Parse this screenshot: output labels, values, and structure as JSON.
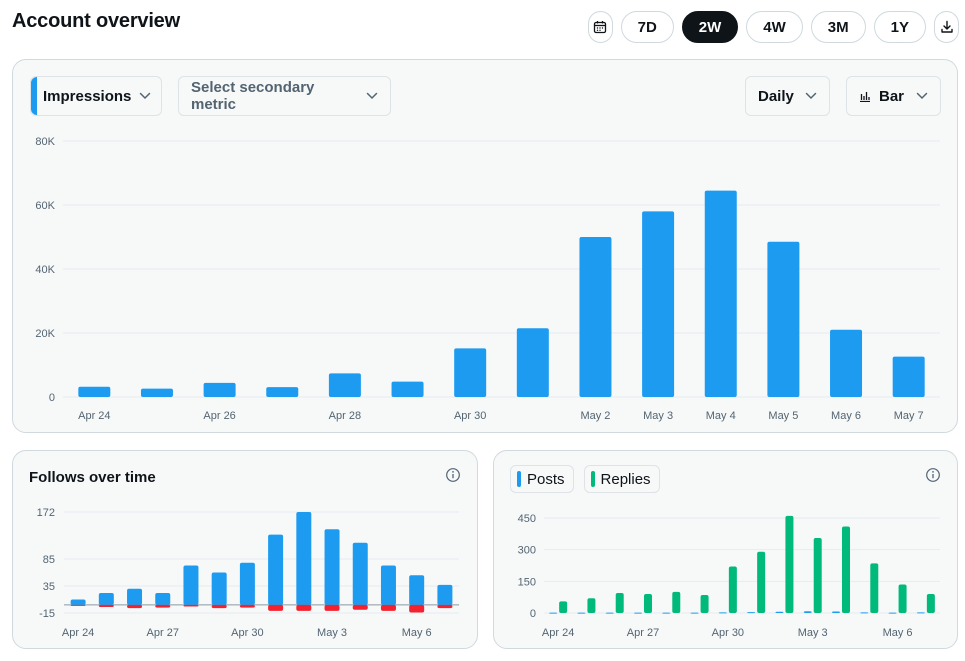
{
  "header": {
    "title": "Account overview",
    "ranges": [
      "7D",
      "2W",
      "4W",
      "3M",
      "1Y"
    ],
    "active_range": "2W",
    "calendar_icon": "calendar-icon",
    "download_icon": "download-icon"
  },
  "controls": {
    "primary_metric": "Impressions",
    "secondary_metric_placeholder": "Select secondary metric",
    "granularity": "Daily",
    "chart_type": "Bar",
    "accent_color": "#1d9bf0"
  },
  "follows": {
    "title": "Follows over time"
  },
  "posts": {
    "legend": [
      {
        "label": "Posts",
        "color": "#1d9bf0"
      },
      {
        "label": "Replies",
        "color": "#00ba7c"
      }
    ]
  },
  "chart_data": [
    {
      "type": "bar",
      "categories": [
        "Apr 24",
        "Apr 25",
        "Apr 26",
        "Apr 27",
        "Apr 28",
        "Apr 29",
        "Apr 30",
        "May 1",
        "May 2",
        "May 3",
        "May 4",
        "May 5",
        "May 6",
        "May 7"
      ],
      "tick_labels": [
        "Apr 24",
        "",
        "Apr 26",
        "",
        "Apr 28",
        "",
        "Apr 30",
        "",
        "May 2",
        "May 3",
        "May 4",
        "May 5",
        "May 6",
        "May 7"
      ],
      "values": [
        3200,
        2600,
        4400,
        3100,
        7400,
        4800,
        15200,
        21500,
        50000,
        58000,
        64500,
        48500,
        21000,
        12600
      ],
      "ylim": [
        0,
        80000
      ],
      "yticks": [
        0,
        20000,
        40000,
        60000,
        80000
      ],
      "ytick_labels": [
        "0",
        "20K",
        "40K",
        "60K",
        "80K"
      ],
      "color": "#1d9bf0",
      "grid": true
    },
    {
      "type": "bar",
      "title": "Follows over time",
      "categories": [
        "Apr 24",
        "Apr 25",
        "Apr 26",
        "Apr 27",
        "Apr 28",
        "Apr 29",
        "Apr 30",
        "May 1",
        "May 2",
        "May 3",
        "May 4",
        "May 5",
        "May 6",
        "May 7"
      ],
      "tick_labels": [
        "Apr 24",
        "",
        "",
        "Apr 27",
        "",
        "",
        "Apr 30",
        "",
        "",
        "May 3",
        "",
        "",
        "May 6",
        ""
      ],
      "series": [
        {
          "values": [
            10,
            22,
            30,
            22,
            73,
            60,
            78,
            130,
            172,
            140,
            115,
            73,
            55,
            37
          ],
          "color": "#1d9bf0"
        },
        {
          "values": [
            -1,
            -4,
            -6,
            -5,
            -3,
            -6,
            -5,
            -11,
            -11,
            -11,
            -9,
            -11,
            -14,
            -6
          ],
          "color": "#f4212e"
        }
      ],
      "ylim": [
        -15,
        172
      ],
      "yticks": [
        -15,
        35,
        85,
        172
      ],
      "ytick_labels": [
        "-15",
        "35",
        "85",
        "172"
      ],
      "grid": true
    },
    {
      "type": "bar",
      "categories": [
        "Apr 24",
        "Apr 25",
        "Apr 26",
        "Apr 27",
        "Apr 28",
        "Apr 29",
        "Apr 30",
        "May 1",
        "May 2",
        "May 3",
        "May 4",
        "May 5",
        "May 6",
        "May 7"
      ],
      "tick_labels": [
        "Apr 24",
        "",
        "",
        "Apr 27",
        "",
        "",
        "Apr 30",
        "",
        "",
        "May 3",
        "",
        "",
        "May 6",
        ""
      ],
      "series": [
        {
          "name": "Posts",
          "values": [
            2,
            2,
            2,
            2,
            2,
            2,
            3,
            4,
            6,
            8,
            7,
            3,
            2,
            3
          ],
          "color": "#1d9bf0"
        },
        {
          "name": "Replies",
          "values": [
            55,
            70,
            95,
            90,
            100,
            85,
            220,
            290,
            460,
            355,
            410,
            235,
            135,
            90
          ],
          "color": "#00ba7c"
        }
      ],
      "ylim": [
        0,
        450
      ],
      "yticks": [
        0,
        150,
        300,
        450
      ],
      "ytick_labels": [
        "0",
        "150",
        "300",
        "450"
      ],
      "grid": true
    }
  ]
}
